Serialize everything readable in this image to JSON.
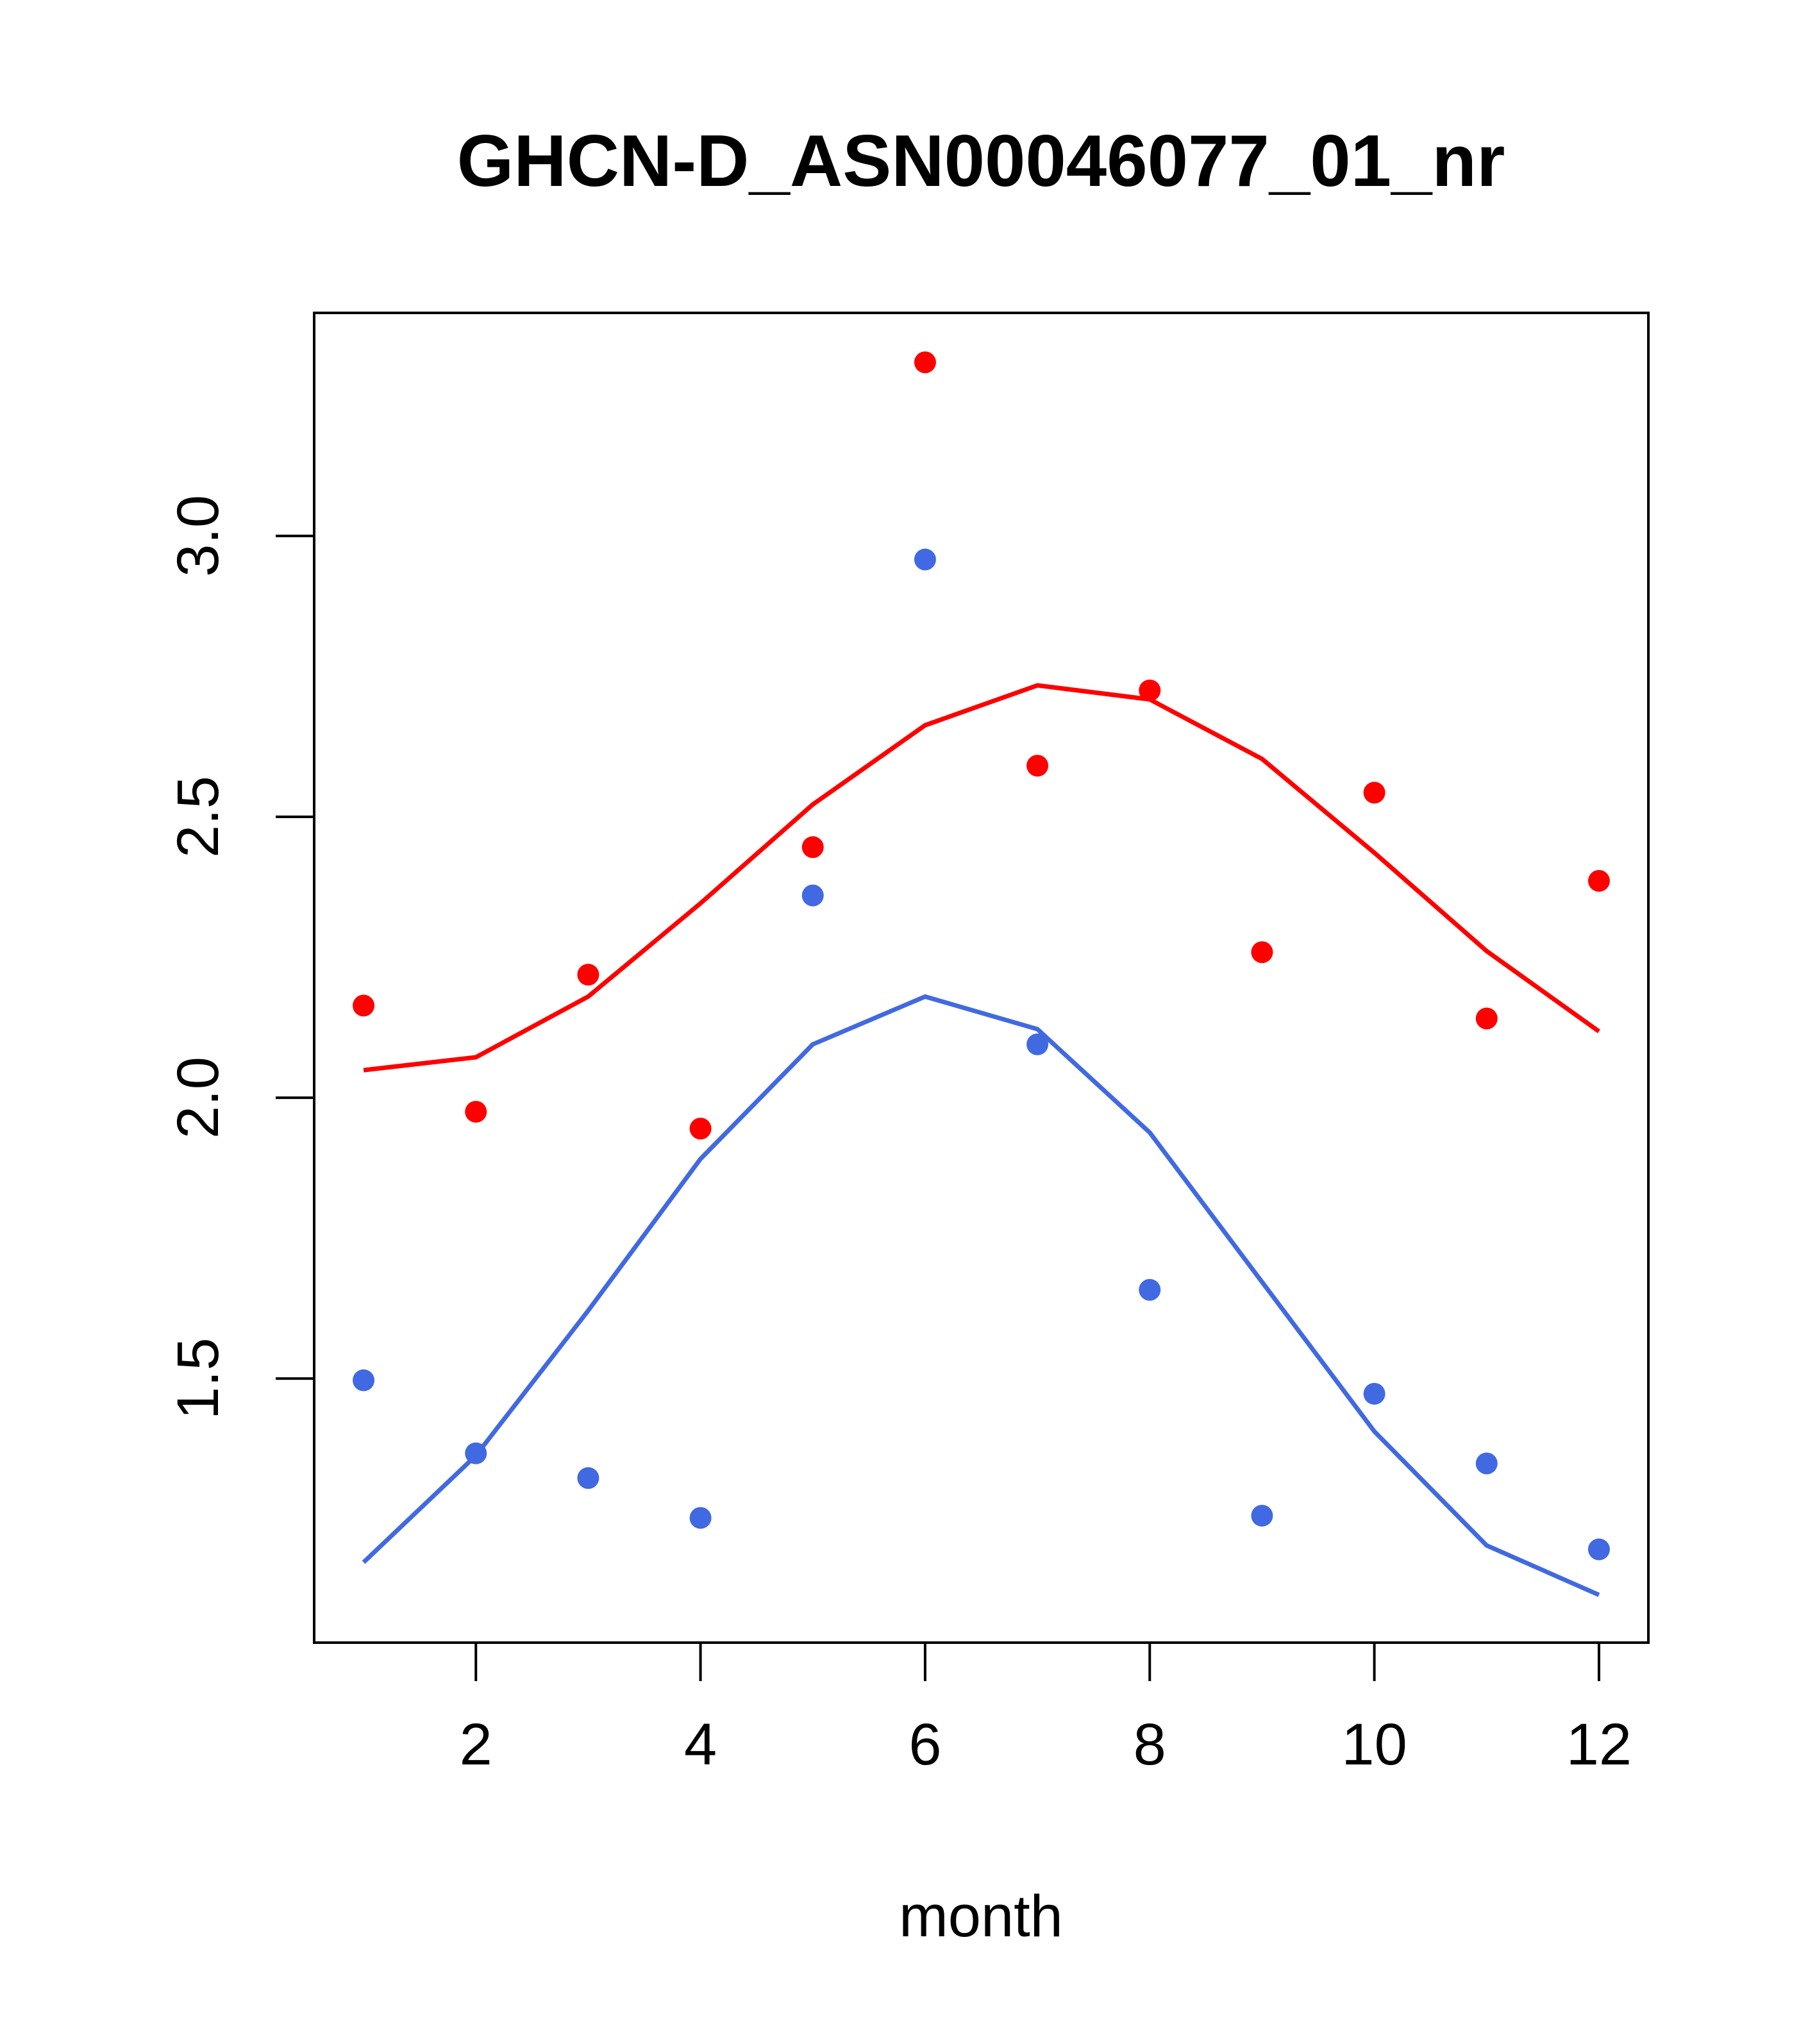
{
  "chart_data": {
    "type": "scatter",
    "title": "GHCN-D_ASN00046077_01_nr",
    "xlabel": "month",
    "ylabel": "",
    "xlim": [
      0.56,
      12.44
    ],
    "ylim": [
      1.03,
      3.397
    ],
    "xticks": [
      2,
      4,
      6,
      8,
      10,
      12
    ],
    "xtick_labels": [
      "2",
      "4",
      "6",
      "8",
      "10",
      "12"
    ],
    "yticks": [
      1.5,
      2.0,
      2.5,
      3.0
    ],
    "ytick_labels": [
      "1.5",
      "2.0",
      "2.5",
      "3.0"
    ],
    "x": [
      1,
      2,
      3,
      4,
      5,
      6,
      7,
      8,
      9,
      10,
      11,
      12
    ],
    "series": [
      {
        "name": "red points",
        "kind": "points",
        "color": "#ff0000",
        "values": [
          2.164,
          1.975,
          2.219,
          1.945,
          2.446,
          3.309,
          2.591,
          2.725,
          2.259,
          2.543,
          2.141,
          2.386
        ]
      },
      {
        "name": "red line",
        "kind": "line",
        "color": "#ff0000",
        "values": [
          2.049,
          2.072,
          2.18,
          2.346,
          2.522,
          2.663,
          2.734,
          2.709,
          2.603,
          2.436,
          2.261,
          2.118
        ]
      },
      {
        "name": "blue points",
        "kind": "points",
        "color": "#4169e1",
        "values": [
          1.497,
          1.367,
          1.323,
          1.252,
          2.36,
          2.958,
          2.095,
          1.658,
          1.256,
          1.473,
          1.349,
          1.196
        ]
      },
      {
        "name": "blue line",
        "kind": "line",
        "color": "#4169e1",
        "values": [
          1.173,
          1.363,
          1.621,
          1.891,
          2.095,
          2.18,
          2.122,
          1.938,
          1.672,
          1.406,
          1.203,
          1.115
        ]
      }
    ],
    "grid": false
  }
}
